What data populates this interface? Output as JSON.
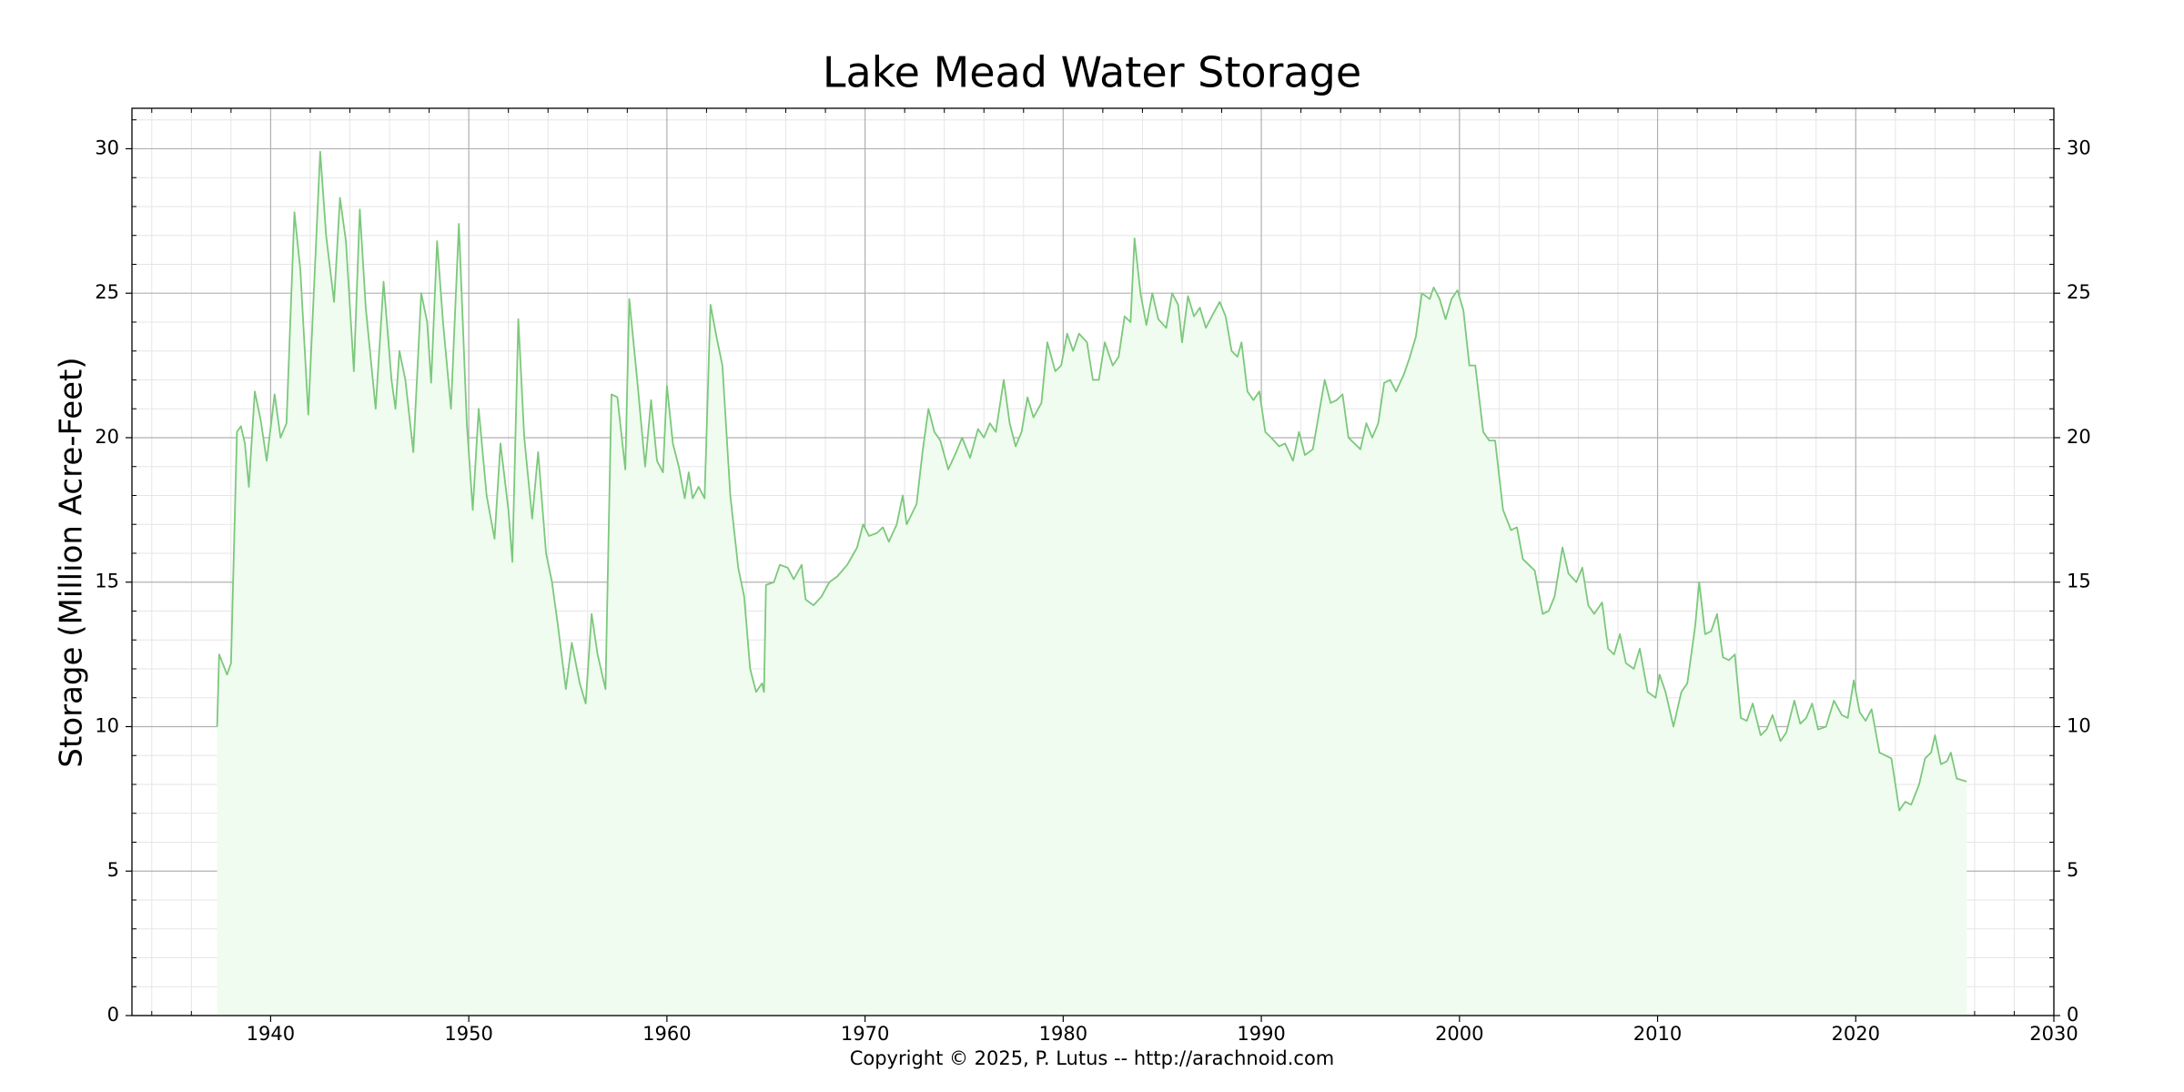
{
  "chart_data": {
    "type": "line",
    "title": "Lake Mead Water Storage",
    "ylabel": "Storage (Million Acre-Feet)",
    "x": [
      1937.3,
      1937.4,
      1937.8,
      1938.0,
      1938.3,
      1938.5,
      1938.7,
      1938.9,
      1939.2,
      1939.5,
      1939.8,
      1940.2,
      1940.5,
      1940.8,
      1941.2,
      1941.5,
      1941.9,
      1942.5,
      1942.8,
      1943.2,
      1943.5,
      1943.8,
      1944.2,
      1944.5,
      1944.8,
      1945.3,
      1945.7,
      1946.1,
      1946.3,
      1946.5,
      1946.8,
      1947.2,
      1947.6,
      1947.9,
      1948.1,
      1948.4,
      1948.7,
      1949.1,
      1949.5,
      1949.9,
      1950.2,
      1950.5,
      1950.9,
      1951.3,
      1951.6,
      1952.0,
      1952.2,
      1952.5,
      1952.8,
      1953.2,
      1953.5,
      1953.9,
      1954.2,
      1954.5,
      1954.9,
      1955.2,
      1955.6,
      1955.9,
      1956.2,
      1956.5,
      1956.9,
      1957.2,
      1957.5,
      1957.9,
      1958.1,
      1958.5,
      1958.9,
      1959.2,
      1959.5,
      1959.8,
      1960.0,
      1960.3,
      1960.6,
      1960.9,
      1961.1,
      1961.3,
      1961.6,
      1961.9,
      1962.2,
      1962.5,
      1962.8,
      1963.2,
      1963.6,
      1963.9,
      1964.2,
      1964.5,
      1964.8,
      1964.9,
      1965.0,
      1965.4,
      1965.7,
      1966.1,
      1966.4,
      1966.8,
      1967.0,
      1967.4,
      1967.8,
      1968.2,
      1968.6,
      1969.1,
      1969.6,
      1969.9,
      1970.2,
      1970.6,
      1970.9,
      1971.2,
      1971.6,
      1971.9,
      1972.1,
      1972.6,
      1972.9,
      1973.2,
      1973.5,
      1973.8,
      1974.2,
      1974.6,
      1974.9,
      1975.3,
      1975.7,
      1976.0,
      1976.3,
      1976.6,
      1977.0,
      1977.3,
      1977.6,
      1977.9,
      1978.2,
      1978.5,
      1978.9,
      1979.2,
      1979.6,
      1979.9,
      1980.2,
      1980.5,
      1980.8,
      1981.2,
      1981.5,
      1981.8,
      1982.1,
      1982.5,
      1982.8,
      1983.1,
      1983.4,
      1983.6,
      1983.9,
      1984.2,
      1984.5,
      1984.8,
      1985.2,
      1985.5,
      1985.8,
      1986.0,
      1986.3,
      1986.6,
      1986.9,
      1987.2,
      1987.5,
      1987.9,
      1988.2,
      1988.5,
      1988.8,
      1989.0,
      1989.3,
      1989.6,
      1989.9,
      1990.2,
      1990.5,
      1990.9,
      1991.2,
      1991.6,
      1991.9,
      1992.2,
      1992.6,
      1993.2,
      1993.5,
      1993.8,
      1994.1,
      1994.4,
      1994.7,
      1995.0,
      1995.3,
      1995.6,
      1995.9,
      1996.2,
      1996.5,
      1996.8,
      1997.2,
      1997.5,
      1997.8,
      1998.1,
      1998.5,
      1998.7,
      1999.0,
      1999.3,
      1999.6,
      1999.9,
      2000.2,
      2000.5,
      2000.8,
      2001.2,
      2001.5,
      2001.8,
      2002.2,
      2002.6,
      2002.9,
      2003.2,
      2003.5,
      2003.8,
      2004.2,
      2004.5,
      2004.8,
      2005.2,
      2005.5,
      2005.9,
      2006.2,
      2006.5,
      2006.8,
      2007.2,
      2007.5,
      2007.8,
      2008.1,
      2008.4,
      2008.8,
      2009.1,
      2009.5,
      2009.9,
      2010.1,
      2010.4,
      2010.8,
      2011.2,
      2011.5,
      2011.9,
      2012.1,
      2012.4,
      2012.7,
      2013.0,
      2013.3,
      2013.6,
      2013.9,
      2014.2,
      2014.5,
      2014.8,
      2015.2,
      2015.5,
      2015.8,
      2016.2,
      2016.5,
      2016.9,
      2017.2,
      2017.5,
      2017.8,
      2018.1,
      2018.5,
      2018.9,
      2019.3,
      2019.6,
      2019.9,
      2020.2,
      2020.5,
      2020.8,
      2021.2,
      2021.5,
      2021.8,
      2022.2,
      2022.5,
      2022.8,
      2023.2,
      2023.5,
      2023.8,
      2024.0,
      2024.3,
      2024.6,
      2024.8,
      2025.1,
      2025.6
    ],
    "values": [
      10.0,
      12.5,
      11.8,
      12.2,
      20.2,
      20.4,
      19.8,
      18.3,
      21.6,
      20.6,
      19.2,
      21.5,
      20.0,
      20.5,
      27.8,
      25.8,
      20.8,
      29.9,
      27.0,
      24.7,
      28.3,
      26.8,
      22.3,
      27.9,
      24.5,
      21.0,
      25.4,
      22.0,
      21.0,
      23.0,
      22.0,
      19.5,
      25.0,
      24.0,
      21.9,
      26.8,
      24.0,
      21.0,
      27.4,
      20.5,
      17.5,
      21.0,
      18.0,
      16.5,
      19.8,
      17.5,
      15.7,
      24.1,
      20.0,
      17.2,
      19.5,
      16.0,
      15.0,
      13.5,
      11.3,
      12.9,
      11.5,
      10.8,
      13.9,
      12.5,
      11.3,
      21.5,
      21.4,
      18.9,
      24.8,
      22.0,
      19.0,
      21.3,
      19.2,
      18.8,
      21.8,
      19.8,
      19.0,
      17.9,
      18.8,
      17.9,
      18.3,
      17.9,
      24.6,
      23.5,
      22.5,
      18.0,
      15.5,
      14.5,
      12.0,
      11.2,
      11.5,
      11.2,
      14.9,
      15.0,
      15.6,
      15.5,
      15.1,
      15.6,
      14.4,
      14.2,
      14.5,
      15.0,
      15.2,
      15.6,
      16.2,
      17.0,
      16.6,
      16.7,
      16.9,
      16.4,
      17.0,
      18.0,
      17.0,
      17.7,
      19.5,
      21.0,
      20.2,
      19.9,
      18.9,
      19.5,
      20.0,
      19.3,
      20.3,
      20.0,
      20.5,
      20.2,
      22.0,
      20.5,
      19.7,
      20.2,
      21.4,
      20.7,
      21.2,
      23.3,
      22.3,
      22.5,
      23.6,
      23.0,
      23.6,
      23.3,
      22.0,
      22.0,
      23.3,
      22.5,
      22.8,
      24.2,
      24.0,
      26.9,
      25.0,
      23.9,
      25.0,
      24.1,
      23.8,
      25.0,
      24.6,
      23.3,
      24.9,
      24.2,
      24.5,
      23.8,
      24.2,
      24.7,
      24.2,
      23.0,
      22.8,
      23.3,
      21.6,
      21.3,
      21.6,
      20.2,
      20.0,
      19.7,
      19.8,
      19.2,
      20.2,
      19.4,
      19.6,
      22.0,
      21.2,
      21.3,
      21.5,
      20.0,
      19.8,
      19.6,
      20.5,
      20.0,
      20.5,
      21.9,
      22.0,
      21.6,
      22.2,
      22.8,
      23.5,
      25.0,
      24.8,
      25.2,
      24.8,
      24.1,
      24.8,
      25.1,
      24.4,
      22.5,
      22.5,
      20.2,
      19.9,
      19.9,
      17.5,
      16.8,
      16.9,
      15.8,
      15.6,
      15.4,
      13.9,
      14.0,
      14.5,
      16.2,
      15.3,
      15.0,
      15.5,
      14.2,
      13.9,
      14.3,
      12.7,
      12.5,
      13.2,
      12.2,
      12.0,
      12.7,
      11.2,
      11.0,
      11.8,
      11.2,
      10.0,
      11.2,
      11.5,
      13.5,
      15.0,
      13.2,
      13.3,
      13.9,
      12.4,
      12.3,
      12.5,
      10.3,
      10.2,
      10.8,
      9.7,
      9.9,
      10.4,
      9.5,
      9.8,
      10.9,
      10.1,
      10.3,
      10.8,
      9.9,
      10.0,
      10.9,
      10.4,
      10.3,
      11.6,
      10.5,
      10.2,
      10.6,
      9.1,
      9.0,
      8.9,
      7.1,
      7.4,
      7.3,
      8.0,
      8.9,
      9.1,
      9.7,
      8.7,
      8.8,
      9.1,
      8.2,
      8.1
    ],
    "color": "#7cc87c",
    "fill_color": "#effcef",
    "xlim": [
      1933,
      2030
    ],
    "xticks": [
      1940,
      1950,
      1960,
      1970,
      1980,
      1990,
      2000,
      2010,
      2020,
      2030
    ],
    "ylim": [
      0,
      31.4
    ],
    "yticks": [
      0,
      5,
      10,
      15,
      20,
      25,
      30
    ],
    "grid": true,
    "minor_grid": true,
    "right_axis_labels": true
  },
  "footer": "Copyright © 2025, P. Lutus -- http://arachnoid.com"
}
